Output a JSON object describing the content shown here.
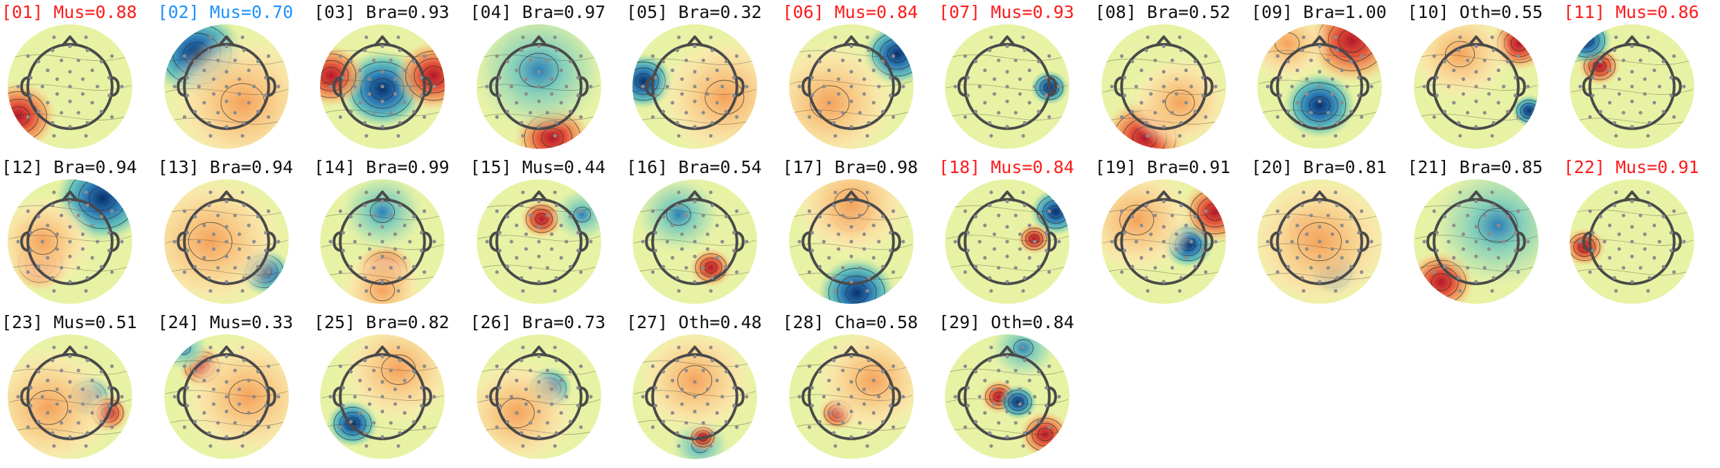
{
  "figure": {
    "palette": {
      "base": "#e8f2a4",
      "label_default": "#111111",
      "label_red": "#ff1a1a",
      "label_blue": "#1e90ff",
      "head_outline": "#4a4a4a",
      "electrode": "#8c8c8c",
      "contour": "#2a2a2a",
      "hot": [
        "#b2182b",
        "#e34a33",
        "#f6a15c",
        "#fdd9a0"
      ],
      "cold": [
        "#08306b",
        "#2171b5",
        "#41b6c4",
        "#a6dba0"
      ]
    },
    "components": [
      {
        "id": "01",
        "label": "[01] Mus=0.88",
        "label_color": "red",
        "blobs": [
          {
            "pole": "hot",
            "u": -0.95,
            "v": 0.55,
            "s": 0.45
          }
        ]
      },
      {
        "id": "02",
        "label": "[02] Mus=0.70",
        "label_color": "blue",
        "blobs": [
          {
            "pole": "cold",
            "u": -0.55,
            "v": -0.6,
            "s": 0.55
          },
          {
            "pole": "warm",
            "u": 0.3,
            "v": 0.3,
            "s": 0.9
          }
        ]
      },
      {
        "id": "03",
        "label": "[03] Bra=0.93",
        "label_color": "default",
        "blobs": [
          {
            "pole": "cold",
            "u": 0.0,
            "v": 0.05,
            "s": 0.5
          },
          {
            "pole": "hot",
            "u": 0.95,
            "v": -0.2,
            "s": 0.45
          },
          {
            "pole": "hot",
            "u": -0.95,
            "v": -0.2,
            "s": 0.4
          }
        ]
      },
      {
        "id": "04",
        "label": "[04] Bra=0.97",
        "label_color": "default",
        "blobs": [
          {
            "pole": "hot",
            "u": 0.25,
            "v": 0.95,
            "s": 0.45
          },
          {
            "pole": "cool",
            "u": 0.0,
            "v": -0.3,
            "s": 0.8
          }
        ]
      },
      {
        "id": "05",
        "label": "[05] Bra=0.32",
        "label_color": "default",
        "blobs": [
          {
            "pole": "cold",
            "u": -0.95,
            "v": -0.1,
            "s": 0.35
          },
          {
            "pole": "warm",
            "u": 0.55,
            "v": 0.2,
            "s": 0.8
          }
        ]
      },
      {
        "id": "06",
        "label": "[06] Mus=0.84",
        "label_color": "red",
        "blobs": [
          {
            "pole": "cold",
            "u": 0.85,
            "v": -0.6,
            "s": 0.4
          },
          {
            "pole": "warm",
            "u": -0.4,
            "v": 0.3,
            "s": 0.8
          }
        ]
      },
      {
        "id": "07",
        "label": "[07] Mus=0.93",
        "label_color": "red",
        "blobs": [
          {
            "pole": "cold",
            "u": 0.78,
            "v": 0.02,
            "s": 0.22
          }
        ]
      },
      {
        "id": "08",
        "label": "[08] Bra=0.52",
        "label_color": "default",
        "blobs": [
          {
            "pole": "hot",
            "u": -0.35,
            "v": 0.95,
            "s": 0.5
          },
          {
            "pole": "warm",
            "u": 0.3,
            "v": 0.3,
            "s": 0.6
          }
        ]
      },
      {
        "id": "09",
        "label": "[09] Bra=1.00",
        "label_color": "default",
        "blobs": [
          {
            "pole": "cold",
            "u": 0.0,
            "v": 0.35,
            "s": 0.42
          },
          {
            "pole": "hot",
            "u": 0.6,
            "v": -0.85,
            "s": 0.55
          },
          {
            "pole": "warm",
            "u": -0.6,
            "v": -0.8,
            "s": 0.5
          }
        ]
      },
      {
        "id": "10",
        "label": "[10] Oth=0.55",
        "label_color": "default",
        "blobs": [
          {
            "pole": "hot",
            "u": 0.8,
            "v": -0.8,
            "s": 0.35
          },
          {
            "pole": "cold",
            "u": 0.98,
            "v": 0.45,
            "s": 0.2
          },
          {
            "pole": "warm",
            "u": -0.3,
            "v": -0.6,
            "s": 0.6
          }
        ]
      },
      {
        "id": "11",
        "label": "[11] Mus=0.86",
        "label_color": "red",
        "blobs": [
          {
            "pole": "hot",
            "u": -0.6,
            "v": -0.38,
            "s": 0.25
          },
          {
            "pole": "cold",
            "u": -0.85,
            "v": -0.85,
            "s": 0.3
          }
        ]
      },
      {
        "id": "12",
        "label": "[12] Bra=0.94",
        "label_color": "default",
        "blobs": [
          {
            "pole": "hot",
            "u": -0.55,
            "v": 0.4,
            "s": 0.35
          },
          {
            "pole": "cold",
            "u": 0.6,
            "v": -0.8,
            "s": 0.55
          },
          {
            "pole": "warm",
            "u": -0.5,
            "v": 0.0,
            "s": 0.6
          }
        ]
      },
      {
        "id": "13",
        "label": "[13] Bra=0.94",
        "label_color": "default",
        "blobs": [
          {
            "pole": "cold",
            "u": 0.7,
            "v": 0.55,
            "s": 0.3
          },
          {
            "pole": "warm",
            "u": -0.3,
            "v": 0.0,
            "s": 0.9
          }
        ]
      },
      {
        "id": "14",
        "label": "[14] Bra=0.99",
        "label_color": "default",
        "blobs": [
          {
            "pole": "hot",
            "u": 0.05,
            "v": 0.55,
            "s": 0.35
          },
          {
            "pole": "cool",
            "u": 0.0,
            "v": -0.55,
            "s": 0.5
          },
          {
            "pole": "warm",
            "u": 0.0,
            "v": 0.9,
            "s": 0.5
          }
        ]
      },
      {
        "id": "15",
        "label": "[15] Mus=0.44",
        "label_color": "default",
        "blobs": [
          {
            "pole": "hot",
            "u": 0.05,
            "v": -0.42,
            "s": 0.25
          },
          {
            "pole": "cool",
            "u": 0.8,
            "v": -0.5,
            "s": 0.35
          }
        ]
      },
      {
        "id": "16",
        "label": "[16] Bra=0.54",
        "label_color": "default",
        "blobs": [
          {
            "pole": "hot",
            "u": 0.3,
            "v": 0.48,
            "s": 0.25
          },
          {
            "pole": "cool",
            "u": -0.3,
            "v": -0.5,
            "s": 0.5
          }
        ]
      },
      {
        "id": "17",
        "label": "[17] Bra=0.98",
        "label_color": "default",
        "blobs": [
          {
            "pole": "hot",
            "u": 0.0,
            "v": -0.5,
            "s": 0.3
          },
          {
            "pole": "cold",
            "u": 0.1,
            "v": 0.95,
            "s": 0.45
          },
          {
            "pole": "warm",
            "u": 0.0,
            "v": -0.7,
            "s": 0.7
          }
        ]
      },
      {
        "id": "18",
        "label": "[18] Mus=0.84",
        "label_color": "red",
        "blobs": [
          {
            "pole": "cold",
            "u": 0.9,
            "v": -0.55,
            "s": 0.3
          },
          {
            "pole": "hot",
            "u": 0.5,
            "v": -0.05,
            "s": 0.2
          }
        ]
      },
      {
        "id": "19",
        "label": "[19] Bra=0.91",
        "label_color": "default",
        "blobs": [
          {
            "pole": "cold",
            "u": 0.45,
            "v": 0.05,
            "s": 0.3
          },
          {
            "pole": "hot",
            "u": 0.95,
            "v": -0.55,
            "s": 0.4
          },
          {
            "pole": "warm",
            "u": -0.5,
            "v": -0.4,
            "s": 0.7
          }
        ]
      },
      {
        "id": "20",
        "label": "[20] Bra=0.81",
        "label_color": "default",
        "blobs": [
          {
            "pole": "hot",
            "u": -0.25,
            "v": -0.25,
            "s": 0.25
          },
          {
            "pole": "cold",
            "u": 0.25,
            "v": 0.55,
            "s": 0.3
          },
          {
            "pole": "warm",
            "u": 0.0,
            "v": 0.0,
            "s": 0.9
          }
        ]
      },
      {
        "id": "21",
        "label": "[21] Bra=0.85",
        "label_color": "default",
        "blobs": [
          {
            "pole": "hot",
            "u": -0.65,
            "v": 0.75,
            "s": 0.4
          },
          {
            "pole": "cool",
            "u": 0.4,
            "v": -0.3,
            "s": 0.8
          }
        ]
      },
      {
        "id": "22",
        "label": "[22] Mus=0.91",
        "label_color": "red",
        "blobs": [
          {
            "pole": "hot",
            "u": -0.88,
            "v": 0.1,
            "s": 0.25
          }
        ]
      },
      {
        "id": "23",
        "label": "[23] Mus=0.51",
        "label_color": "default",
        "blobs": [
          {
            "pole": "cold",
            "u": 0.35,
            "v": 0.0,
            "s": 0.28
          },
          {
            "pole": "hot",
            "u": 0.7,
            "v": 0.3,
            "s": 0.25
          },
          {
            "pole": "warm",
            "u": -0.4,
            "v": 0.2,
            "s": 0.8
          }
        ]
      },
      {
        "id": "24",
        "label": "[24] Mus=0.33",
        "label_color": "default",
        "blobs": [
          {
            "pole": "hot",
            "u": -0.45,
            "v": -0.55,
            "s": 0.28
          },
          {
            "pole": "cool",
            "u": -0.8,
            "v": -0.9,
            "s": 0.3
          },
          {
            "pole": "warm",
            "u": 0.4,
            "v": 0.0,
            "s": 0.8
          }
        ]
      },
      {
        "id": "25",
        "label": "[25] Bra=0.82",
        "label_color": "default",
        "blobs": [
          {
            "pole": "cold",
            "u": -0.55,
            "v": 0.5,
            "s": 0.3
          },
          {
            "pole": "warm",
            "u": 0.3,
            "v": -0.5,
            "s": 0.7
          }
        ]
      },
      {
        "id": "26",
        "label": "[26] Bra=0.73",
        "label_color": "default",
        "blobs": [
          {
            "pole": "cold",
            "u": 0.18,
            "v": -0.15,
            "s": 0.28
          },
          {
            "pole": "warm",
            "u": -0.4,
            "v": 0.3,
            "s": 0.7
          }
        ]
      },
      {
        "id": "27",
        "label": "[27] Oth=0.48",
        "label_color": "default",
        "blobs": [
          {
            "pole": "cool",
            "u": 0.1,
            "v": 0.9,
            "s": 0.35
          },
          {
            "pole": "hot",
            "u": 0.15,
            "v": 0.75,
            "s": 0.18
          },
          {
            "pole": "warm",
            "u": 0.0,
            "v": -0.3,
            "s": 0.7
          }
        ]
      },
      {
        "id": "28",
        "label": "[28] Cha=0.58",
        "label_color": "default",
        "blobs": [
          {
            "pole": "hot",
            "u": -0.25,
            "v": 0.3,
            "s": 0.22
          },
          {
            "pole": "warm",
            "u": 0.4,
            "v": -0.3,
            "s": 0.7
          }
        ]
      },
      {
        "id": "29",
        "label": "[29] Oth=0.84",
        "label_color": "default",
        "blobs": [
          {
            "pole": "hot",
            "u": -0.15,
            "v": 0.0,
            "s": 0.22
          },
          {
            "pole": "cold",
            "u": 0.2,
            "v": 0.1,
            "s": 0.22
          },
          {
            "pole": "cool",
            "u": 0.3,
            "v": -0.9,
            "s": 0.4
          },
          {
            "pole": "hot",
            "u": 0.7,
            "v": 0.7,
            "s": 0.3
          }
        ]
      }
    ]
  }
}
